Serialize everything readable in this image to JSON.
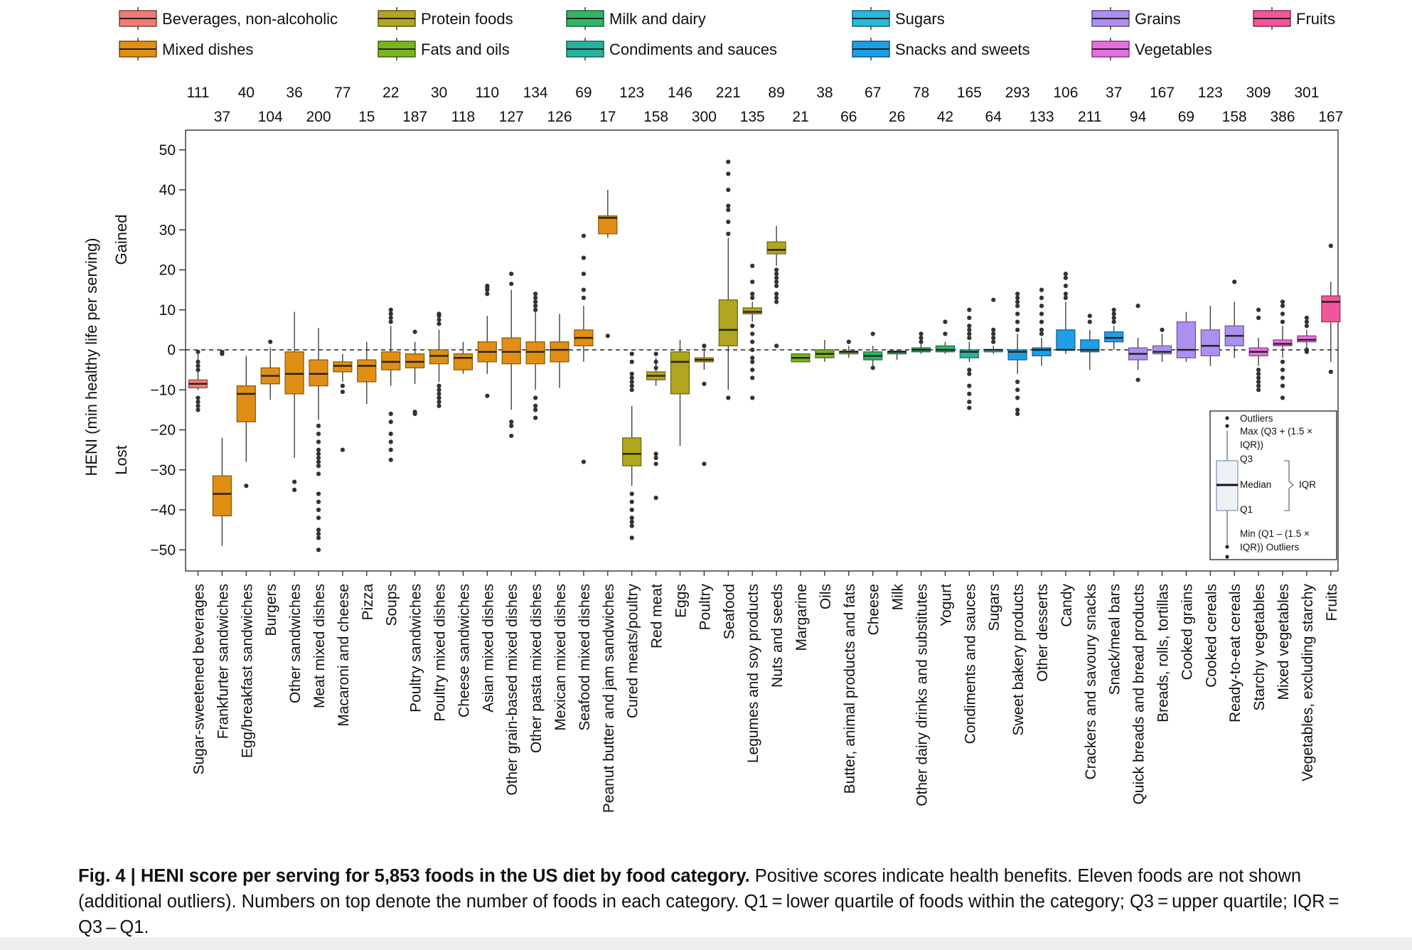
{
  "caption": {
    "fig_label": "Fig. 4 | HENI score per serving for 5,853 foods in the US diet by food category.",
    "text": " Positive scores indicate health benefits. Eleven foods are not shown (additional outliers). Numbers on top denote the number of foods in each category. Q1 = lower quartile of foods within the category; Q3 = upper quartile; IQR = Q3 – Q1."
  },
  "legend_key": {
    "outliers_top": "Outliers",
    "max": "Max (Q3 + (1.5 ×",
    "max2": "IQR))",
    "q3": "Q3",
    "median": "Median",
    "iqr": "IQR",
    "q1": "Q1",
    "min": "Min (Q1 – (1.5 ×",
    "min2": "IQR)) Outliers"
  },
  "chart_data": {
    "type": "box",
    "title": "",
    "ylabel": "HENI (min healthy life per serving)",
    "ylabel_gained": "Gained",
    "ylabel_lost": "Lost",
    "ylim": [
      -53,
      55
    ],
    "yticks": [
      50,
      40,
      30,
      20,
      10,
      0,
      -10,
      -20,
      -30,
      -40,
      -50
    ],
    "ytick_labels": [
      "50",
      "40",
      "30",
      "20",
      "10",
      "0",
      "−10",
      "−20",
      "−30",
      "−40",
      "−50"
    ],
    "reference_line": 0,
    "groups": [
      {
        "name": "Beverages, non-alcoholic",
        "color": "#f07b72"
      },
      {
        "name": "Protein foods",
        "color": "#b2a51f"
      },
      {
        "name": "Milk and dairy",
        "color": "#2fb565"
      },
      {
        "name": "Sugars",
        "color": "#26b9df"
      },
      {
        "name": "Grains",
        "color": "#ad8ff2"
      },
      {
        "name": "Fruits",
        "color": "#f2559a"
      },
      {
        "name": "Mixed dishes",
        "color": "#e08f14"
      },
      {
        "name": "Fats and oils",
        "color": "#79b51d"
      },
      {
        "name": "Condiments and sauces",
        "color": "#27b39b"
      },
      {
        "name": "Snacks and sweets",
        "color": "#1e9ee8"
      },
      {
        "name": "Vegetables",
        "color": "#e66fe0"
      }
    ],
    "categories": [
      {
        "name": "Sugar-sweetened beverages",
        "group": "Beverages, non-alcoholic",
        "n": 111,
        "q1": -9.5,
        "median": -8.5,
        "q3": -7.5,
        "whisker_low": -10,
        "whisker_high": -1,
        "outliers": [
          -0.5,
          -3,
          -4,
          -5,
          -12,
          -13,
          -14,
          -15
        ]
      },
      {
        "name": "Frankfurter sandwiches",
        "group": "Mixed dishes",
        "n": 37,
        "q1": -41.5,
        "median": -36,
        "q3": -31.5,
        "whisker_low": -49,
        "whisker_high": -22,
        "outliers": [
          -1,
          -0.5
        ]
      },
      {
        "name": "Egg/breakfast sandwiches",
        "group": "Mixed dishes",
        "n": 40,
        "q1": -18,
        "median": -11,
        "q3": -9,
        "whisker_low": -28,
        "whisker_high": -1.5,
        "outliers": [
          -34
        ]
      },
      {
        "name": "Burgers",
        "group": "Mixed dishes",
        "n": 104,
        "q1": -8.5,
        "median": -6.5,
        "q3": -4.5,
        "whisker_low": -12.5,
        "whisker_high": 0.5,
        "outliers": [
          2
        ]
      },
      {
        "name": "Other sandwiches",
        "group": "Mixed dishes",
        "n": 36,
        "q1": -11,
        "median": -6,
        "q3": -0.5,
        "whisker_low": -27,
        "whisker_high": 9.5,
        "outliers": [
          -33,
          -35
        ]
      },
      {
        "name": "Meat mixed dishes",
        "group": "Mixed dishes",
        "n": 200,
        "q1": -9,
        "median": -6,
        "q3": -2.5,
        "whisker_low": -17.5,
        "whisker_high": 5.5,
        "outliers": [
          -19,
          -21,
          -23,
          -25,
          -26,
          -27,
          -28,
          -29,
          -31,
          -36,
          -38,
          -40,
          -42,
          -45,
          -46,
          -47,
          -50
        ]
      },
      {
        "name": "Macaroni and cheese",
        "group": "Mixed dishes",
        "n": 77,
        "q1": -5.5,
        "median": -4,
        "q3": -3,
        "whisker_low": -8,
        "whisker_high": -1,
        "outliers": [
          -9,
          -10.5,
          -25
        ]
      },
      {
        "name": "Pizza",
        "group": "Mixed dishes",
        "n": 15,
        "q1": -8,
        "median": -4,
        "q3": -2.5,
        "whisker_low": -13.5,
        "whisker_high": 2,
        "outliers": []
      },
      {
        "name": "Soups",
        "group": "Mixed dishes",
        "n": 22,
        "q1": -5,
        "median": -3,
        "q3": -0.5,
        "whisker_low": -9,
        "whisker_high": 6,
        "outliers": [
          7,
          8,
          9,
          10,
          -16,
          -18,
          -21,
          -23,
          -25,
          -27.5
        ]
      },
      {
        "name": "Poultry sandwiches",
        "group": "Mixed dishes",
        "n": 187,
        "q1": -4.5,
        "median": -3,
        "q3": -1,
        "whisker_low": -8.5,
        "whisker_high": 2,
        "outliers": [
          4.5,
          -15.5,
          -16
        ]
      },
      {
        "name": "Poultry mixed dishes",
        "group": "Mixed dishes",
        "n": 30,
        "q1": -3.5,
        "median": -1.5,
        "q3": 0,
        "whisker_low": -8,
        "whisker_high": 5,
        "outliers": [
          6.5,
          7.5,
          8.5,
          9,
          -9,
          -10,
          -11,
          -12,
          -13,
          -14
        ]
      },
      {
        "name": "Cheese sandwiches",
        "group": "Mixed dishes",
        "n": 118,
        "q1": -5,
        "median": -2,
        "q3": -1,
        "whisker_low": -6,
        "whisker_high": 2,
        "outliers": []
      },
      {
        "name": "Asian mixed dishes",
        "group": "Mixed dishes",
        "n": 110,
        "q1": -3,
        "median": -0.5,
        "q3": 2,
        "whisker_low": -6,
        "whisker_high": 8.5,
        "outliers": [
          14,
          15,
          15.5,
          16,
          -11.5
        ]
      },
      {
        "name": "Other grain-based mixed dishes",
        "group": "Mixed dishes",
        "n": 127,
        "q1": -3.5,
        "median": -0.5,
        "q3": 3,
        "whisker_low": -15,
        "whisker_high": 15,
        "outliers": [
          16.5,
          19,
          -18,
          -19,
          -21.5
        ]
      },
      {
        "name": "Other pasta mixed dishes",
        "group": "Mixed dishes",
        "n": 134,
        "q1": -3.5,
        "median": -0.5,
        "q3": 2,
        "whisker_low": -10,
        "whisker_high": 9.5,
        "outliers": [
          10,
          11,
          12,
          13,
          14,
          -12,
          -14,
          -15,
          -17
        ]
      },
      {
        "name": "Mexican mixed dishes",
        "group": "Mixed dishes",
        "n": 126,
        "q1": -3,
        "median": 0,
        "q3": 2,
        "whisker_low": -9.5,
        "whisker_high": 9,
        "outliers": []
      },
      {
        "name": "Seafood mixed dishes",
        "group": "Mixed dishes",
        "n": 69,
        "q1": 1,
        "median": 3,
        "q3": 5,
        "whisker_low": -3,
        "whisker_high": 11,
        "outliers": [
          13,
          15,
          19,
          23,
          28.5,
          -28
        ]
      },
      {
        "name": "Peanut butter and jam sandwiches",
        "group": "Mixed dishes",
        "n": 17,
        "q1": 29,
        "median": 33,
        "q3": 33.5,
        "whisker_low": 28,
        "whisker_high": 40,
        "outliers": [
          3.5
        ]
      },
      {
        "name": "Cured meats/poultry",
        "group": "Protein foods",
        "n": 123,
        "q1": -29,
        "median": -26,
        "q3": -22,
        "whisker_low": -34,
        "whisker_high": -14,
        "outliers": [
          -1,
          -3,
          -6,
          -7,
          -8,
          -9,
          -10,
          -36,
          -38,
          -40,
          -42,
          -43,
          -44,
          -47
        ]
      },
      {
        "name": "Red meat",
        "group": "Protein foods",
        "n": 158,
        "q1": -7.5,
        "median": -6.5,
        "q3": -5.5,
        "whisker_low": -9,
        "whisker_high": -2,
        "outliers": [
          -1,
          -3,
          -4.5,
          -26,
          -27,
          -28.5,
          -37
        ]
      },
      {
        "name": "Eggs",
        "group": "Protein foods",
        "n": 146,
        "q1": -11,
        "median": -3,
        "q3": -0.5,
        "whisker_low": -24,
        "whisker_high": 2.5,
        "outliers": []
      },
      {
        "name": "Poultry",
        "group": "Protein foods",
        "n": 300,
        "q1": -3,
        "median": -2.5,
        "q3": -2,
        "whisker_low": -5,
        "whisker_high": 0.5,
        "outliers": [
          1,
          -8.5,
          -28.5
        ]
      },
      {
        "name": "Seafood",
        "group": "Protein foods",
        "n": 221,
        "q1": 1,
        "median": 5,
        "q3": 12.5,
        "whisker_low": -10,
        "whisker_high": 28,
        "outliers": [
          29,
          32,
          35,
          36,
          40,
          44,
          47,
          -12
        ]
      },
      {
        "name": "Legumes and soy products",
        "group": "Protein foods",
        "n": 135,
        "q1": 9,
        "median": 9.5,
        "q3": 10.5,
        "whisker_low": 7,
        "whisker_high": 12,
        "outliers": [
          13,
          14,
          17,
          21,
          6,
          4,
          2,
          0,
          -2,
          -3,
          -5,
          -7,
          -12
        ]
      },
      {
        "name": "Nuts and seeds",
        "group": "Protein foods",
        "n": 89,
        "q1": 24,
        "median": 25,
        "q3": 27,
        "whisker_low": 21,
        "whisker_high": 31,
        "outliers": [
          1,
          12,
          13,
          14,
          16,
          17,
          18,
          19,
          20
        ]
      },
      {
        "name": "Margarine",
        "group": "Fats and oils",
        "n": 21,
        "q1": -3,
        "median": -2,
        "q3": -1,
        "whisker_low": -3,
        "whisker_high": -1,
        "outliers": []
      },
      {
        "name": "Oils",
        "group": "Fats and oils",
        "n": 38,
        "q1": -2,
        "median": -1,
        "q3": 0,
        "whisker_low": -3,
        "whisker_high": 2.5,
        "outliers": []
      },
      {
        "name": "Butter, animal products and fats",
        "group": "Fats and oils",
        "n": 66,
        "q1": -1,
        "median": -0.5,
        "q3": -0.3,
        "whisker_low": -2,
        "whisker_high": 1,
        "outliers": [
          2
        ]
      },
      {
        "name": "Cheese",
        "group": "Milk and dairy",
        "n": 67,
        "q1": -2.5,
        "median": -1.5,
        "q3": -0.5,
        "whisker_low": -4,
        "whisker_high": 1,
        "outliers": [
          4,
          -4.5
        ]
      },
      {
        "name": "Milk",
        "group": "Milk and dairy",
        "n": 26,
        "q1": -1,
        "median": -0.5,
        "q3": -0.3,
        "whisker_low": -2.5,
        "whisker_high": 0,
        "outliers": []
      },
      {
        "name": "Other dairy drinks and substitutes",
        "group": "Milk and dairy",
        "n": 78,
        "q1": -0.5,
        "median": 0,
        "q3": 0.5,
        "whisker_low": -1,
        "whisker_high": 1.5,
        "outliers": [
          2,
          3,
          4
        ]
      },
      {
        "name": "Yogurt",
        "group": "Milk and dairy",
        "n": 42,
        "q1": -0.5,
        "median": 0,
        "q3": 1,
        "whisker_low": -1,
        "whisker_high": 2,
        "outliers": [
          4,
          7
        ]
      },
      {
        "name": "Condiments and sauces",
        "group": "Condiments and sauces",
        "n": 165,
        "q1": -2,
        "median": -0.5,
        "q3": 0,
        "whisker_low": -3,
        "whisker_high": 2,
        "outliers": [
          3,
          4,
          5,
          6,
          8,
          10,
          -5,
          -6,
          -9,
          -11,
          -13,
          -14.5
        ]
      },
      {
        "name": "Sugars",
        "group": "Sugars",
        "n": 64,
        "q1": -0.5,
        "median": 0,
        "q3": 0,
        "whisker_low": -1,
        "whisker_high": 1,
        "outliers": [
          2,
          3,
          4,
          5,
          12.5
        ]
      },
      {
        "name": "Sweet bakery products",
        "group": "Snacks and sweets",
        "n": 293,
        "q1": -2.5,
        "median": -0.5,
        "q3": 0,
        "whisker_low": -6,
        "whisker_high": 4,
        "outliers": [
          5,
          7,
          9,
          11,
          12,
          13,
          14,
          -8,
          -10,
          -12,
          -15,
          -16
        ]
      },
      {
        "name": "Other desserts",
        "group": "Snacks and sweets",
        "n": 133,
        "q1": -1.5,
        "median": 0,
        "q3": 0.5,
        "whisker_low": -4,
        "whisker_high": 3,
        "outliers": [
          4,
          5,
          7,
          9,
          11,
          13,
          15
        ]
      },
      {
        "name": "Candy",
        "group": "Snacks and sweets",
        "n": 106,
        "q1": 0,
        "median": 0,
        "q3": 5,
        "whisker_low": -1,
        "whisker_high": 12,
        "outliers": [
          13,
          14,
          16,
          18,
          19
        ]
      },
      {
        "name": "Crackers and savoury snacks",
        "group": "Snacks and sweets",
        "n": 211,
        "q1": -0.5,
        "median": 0,
        "q3": 2.5,
        "whisker_low": -5,
        "whisker_high": 5,
        "outliers": [
          7,
          8.5
        ]
      },
      {
        "name": "Snack/meal bars",
        "group": "Snacks and sweets",
        "n": 37,
        "q1": 2,
        "median": 3,
        "q3": 4.5,
        "whisker_low": 0,
        "whisker_high": 6,
        "outliers": [
          7,
          8,
          9,
          10
        ]
      },
      {
        "name": "Quick breads and bread products",
        "group": "Grains",
        "n": 94,
        "q1": -2.5,
        "median": -1,
        "q3": 0.5,
        "whisker_low": -5,
        "whisker_high": 3,
        "outliers": [
          11,
          -7.5
        ]
      },
      {
        "name": "Breads, rolls, tortillas",
        "group": "Grains",
        "n": 167,
        "q1": -1,
        "median": -0.5,
        "q3": 1,
        "whisker_low": -3,
        "whisker_high": 4,
        "outliers": [
          5
        ]
      },
      {
        "name": "Cooked grains",
        "group": "Grains",
        "n": 69,
        "q1": -2,
        "median": 0,
        "q3": 7,
        "whisker_low": -3,
        "whisker_high": 9.5,
        "outliers": []
      },
      {
        "name": "Cooked cereals",
        "group": "Grains",
        "n": 123,
        "q1": -1.5,
        "median": 1,
        "q3": 5,
        "whisker_low": -4,
        "whisker_high": 11,
        "outliers": []
      },
      {
        "name": "Ready-to-eat cereals",
        "group": "Grains",
        "n": 158,
        "q1": 1,
        "median": 3.5,
        "q3": 6,
        "whisker_low": -2,
        "whisker_high": 12,
        "outliers": [
          17
        ]
      },
      {
        "name": "Starchy vegetables",
        "group": "Vegetables",
        "n": 309,
        "q1": -1.5,
        "median": -0.5,
        "q3": 0.5,
        "whisker_low": -4,
        "whisker_high": 3,
        "outliers": [
          8,
          10,
          -5,
          -6,
          -7,
          -8,
          -9,
          -10
        ]
      },
      {
        "name": "Mixed vegetables",
        "group": "Vegetables",
        "n": 386,
        "q1": 1,
        "median": 1.5,
        "q3": 2.5,
        "whisker_low": -2,
        "whisker_high": 6,
        "outliers": [
          7,
          9,
          11,
          12,
          -3,
          -5,
          -7,
          -9,
          -12
        ]
      },
      {
        "name": "Vegetables, excluding starchy",
        "group": "Vegetables",
        "n": 301,
        "q1": 2,
        "median": 2.5,
        "q3": 3.5,
        "whisker_low": 0.5,
        "whisker_high": 5,
        "outliers": [
          6,
          7,
          8,
          0,
          -0.5
        ]
      },
      {
        "name": "Fruits",
        "group": "Fruits",
        "n": 167,
        "q1": 7,
        "median": 12,
        "q3": 13.5,
        "whisker_low": -3,
        "whisker_high": 17,
        "outliers": [
          26,
          -5.5
        ]
      }
    ]
  }
}
